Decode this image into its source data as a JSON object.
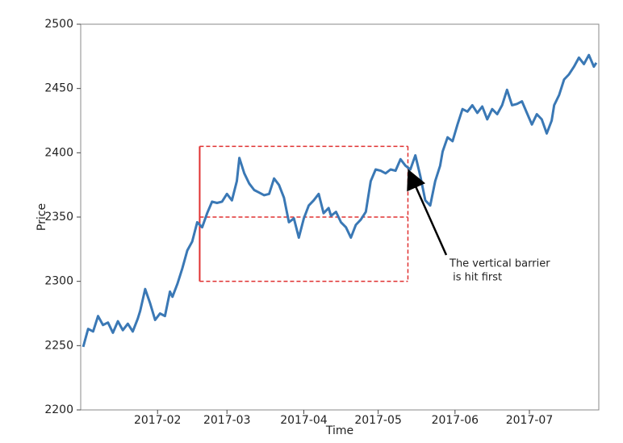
{
  "chart_data": {
    "type": "line",
    "x_label": "Time",
    "y_label": "Price",
    "xlim": [
      1,
      210
    ],
    "ylim": [
      2200,
      2500
    ],
    "xticks": [
      {
        "value": 32,
        "label": "2017-02"
      },
      {
        "value": 60,
        "label": "2017-03"
      },
      {
        "value": 91,
        "label": "2017-04"
      },
      {
        "value": 121,
        "label": "2017-05"
      },
      {
        "value": 152,
        "label": "2017-06"
      },
      {
        "value": 182,
        "label": "2017-07"
      }
    ],
    "yticks": [
      2200,
      2250,
      2300,
      2350,
      2400,
      2450,
      2500
    ],
    "grid": false,
    "series": [
      {
        "color": "#3a78b5",
        "x": [
          2,
          4,
          6,
          8,
          10,
          12,
          14,
          16,
          18,
          20,
          22,
          24,
          25,
          27,
          29,
          31,
          33,
          35,
          37,
          38,
          40,
          42,
          44,
          46,
          48,
          50,
          52,
          54,
          56,
          58,
          60,
          62,
          64,
          65,
          67,
          69,
          71,
          73,
          75,
          77,
          79,
          81,
          83,
          85,
          87,
          89,
          91,
          93,
          95,
          97,
          99,
          101,
          102,
          104,
          106,
          108,
          110,
          112,
          114,
          116,
          118,
          120,
          122,
          124,
          126,
          128,
          130,
          132,
          134,
          136,
          138,
          140,
          142,
          144,
          146,
          147,
          149,
          151,
          153,
          155,
          157,
          159,
          161,
          163,
          165,
          167,
          169,
          171,
          173,
          175,
          177,
          179,
          181,
          183,
          185,
          187,
          189,
          191,
          192,
          194,
          196,
          198,
          200,
          202,
          204,
          206,
          208,
          209
        ],
        "values": [
          2249,
          2263,
          2261,
          2273,
          2266,
          2268,
          2260,
          2269,
          2262,
          2267,
          2261,
          2271,
          2277,
          2294,
          2283,
          2270,
          2275,
          2273,
          2292,
          2288,
          2298,
          2310,
          2324,
          2331,
          2346,
          2342,
          2353,
          2362,
          2361,
          2362,
          2368,
          2363,
          2378,
          2396,
          2384,
          2376,
          2371,
          2369,
          2367,
          2368,
          2380,
          2375,
          2365,
          2346,
          2349,
          2334,
          2349,
          2359,
          2363,
          2368,
          2353,
          2357,
          2351,
          2354,
          2346,
          2342,
          2334,
          2344,
          2348,
          2354,
          2378,
          2387,
          2386,
          2384,
          2387,
          2386,
          2395,
          2390,
          2387,
          2398,
          2382,
          2363,
          2359,
          2378,
          2390,
          2401,
          2412,
          2409,
          2422,
          2434,
          2432,
          2437,
          2431,
          2436,
          2426,
          2434,
          2430,
          2437,
          2449,
          2437,
          2438,
          2440,
          2431,
          2422,
          2430,
          2426,
          2415,
          2425,
          2437,
          2445,
          2457,
          2461,
          2467,
          2474,
          2469,
          2476,
          2467,
          2470
        ]
      }
    ],
    "barrier": {
      "color": "#e03030",
      "start": 49,
      "end": 133,
      "upper": 2405,
      "entry": 2350,
      "lower": 2300
    },
    "annotation": {
      "lines": [
        "The vertical barrier",
        " is hit first"
      ],
      "x": 133,
      "y": 2387
    }
  }
}
